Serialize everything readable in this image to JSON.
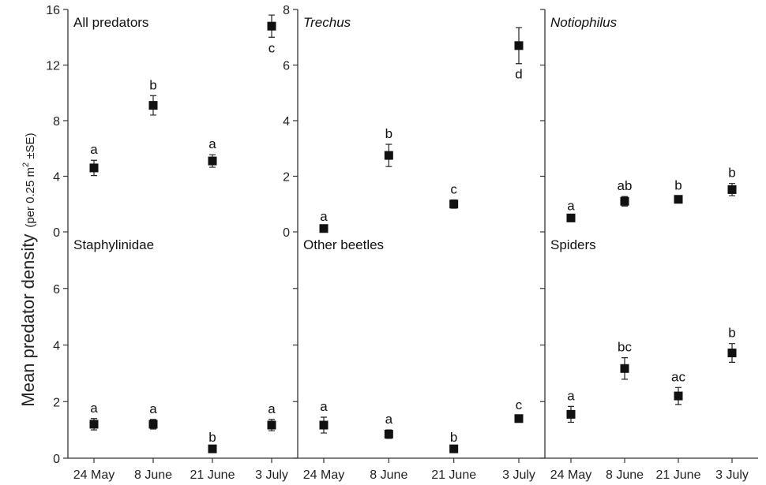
{
  "ylabel": {
    "main": "Mean predator density",
    "units_prefix": "(per 0.25 m",
    "units_sup": "2",
    "units_suffix": " ±SE)"
  },
  "colors": {
    "marker": "#111111",
    "axis": "#333333",
    "text": "#222222"
  },
  "chart_data": [
    {
      "type": "scatter",
      "title": "All predators",
      "title_italic": false,
      "categories": [
        "24 May",
        "8 June",
        "21 June",
        "3 July"
      ],
      "values": [
        4.6,
        9.1,
        5.1,
        14.8
      ],
      "errors": [
        0.55,
        0.7,
        0.45,
        0.8
      ],
      "letters": [
        "a",
        "b",
        "a",
        "c"
      ],
      "letter_below": [
        false,
        false,
        false,
        true
      ],
      "ylim": [
        0,
        16
      ],
      "yticks": [
        "0",
        "4",
        "8",
        "12",
        "16"
      ]
    },
    {
      "type": "scatter",
      "title": "Trechus",
      "title_italic": true,
      "categories": [
        "24 May",
        "8 June",
        "21 June",
        "3 July"
      ],
      "values": [
        0.12,
        2.75,
        1.0,
        6.7
      ],
      "errors": [
        0.05,
        0.4,
        0.15,
        0.65
      ],
      "letters": [
        "a",
        "b",
        "c",
        "d"
      ],
      "letter_below": [
        false,
        false,
        false,
        true
      ],
      "ylim": [
        0,
        8
      ],
      "yticks": [
        "0",
        "2",
        "4",
        "6",
        "8"
      ]
    },
    {
      "type": "scatter",
      "title": "Notiophilus",
      "title_italic": true,
      "categories": [
        "24 May",
        "8 June",
        "21 June",
        "3 July"
      ],
      "values": [
        0.5,
        1.1,
        1.17,
        1.52
      ],
      "errors": [
        0.05,
        0.17,
        0.12,
        0.22
      ],
      "letters": [
        "a",
        "ab",
        "b",
        "b"
      ],
      "letter_below": [
        false,
        false,
        false,
        false
      ],
      "ylim": [
        0,
        8
      ],
      "yticks": []
    },
    {
      "type": "scatter",
      "title": "Staphylinidae",
      "title_italic": false,
      "categories": [
        "24 May",
        "8 June",
        "21 June",
        "3 July"
      ],
      "values": [
        1.2,
        1.2,
        0.33,
        1.17
      ],
      "errors": [
        0.2,
        0.17,
        0.03,
        0.2
      ],
      "letters": [
        "a",
        "a",
        "b",
        "a"
      ],
      "letter_below": [
        false,
        false,
        false,
        false
      ],
      "ylim": [
        0,
        8
      ],
      "yticks": [
        "0",
        "2",
        "4",
        "6"
      ]
    },
    {
      "type": "scatter",
      "title": "Other beetles",
      "title_italic": false,
      "categories": [
        "24 May",
        "8 June",
        "21 June",
        "3 July"
      ],
      "values": [
        1.17,
        0.85,
        0.33,
        1.4
      ],
      "errors": [
        0.28,
        0.15,
        0.03,
        0.1
      ],
      "letters": [
        "a",
        "a",
        "b",
        "c"
      ],
      "letter_below": [
        false,
        false,
        false,
        false
      ],
      "ylim": [
        0,
        8
      ],
      "yticks": []
    },
    {
      "type": "scatter",
      "title": "Spiders",
      "title_italic": false,
      "categories": [
        "24 May",
        "8 June",
        "21 June",
        "3 July"
      ],
      "values": [
        1.55,
        3.17,
        2.2,
        3.72
      ],
      "errors": [
        0.28,
        0.38,
        0.3,
        0.33
      ],
      "letters": [
        "a",
        "bc",
        "ac",
        "b"
      ],
      "letter_below": [
        false,
        false,
        false,
        false
      ],
      "ylim": [
        0,
        8
      ],
      "yticks": []
    }
  ]
}
